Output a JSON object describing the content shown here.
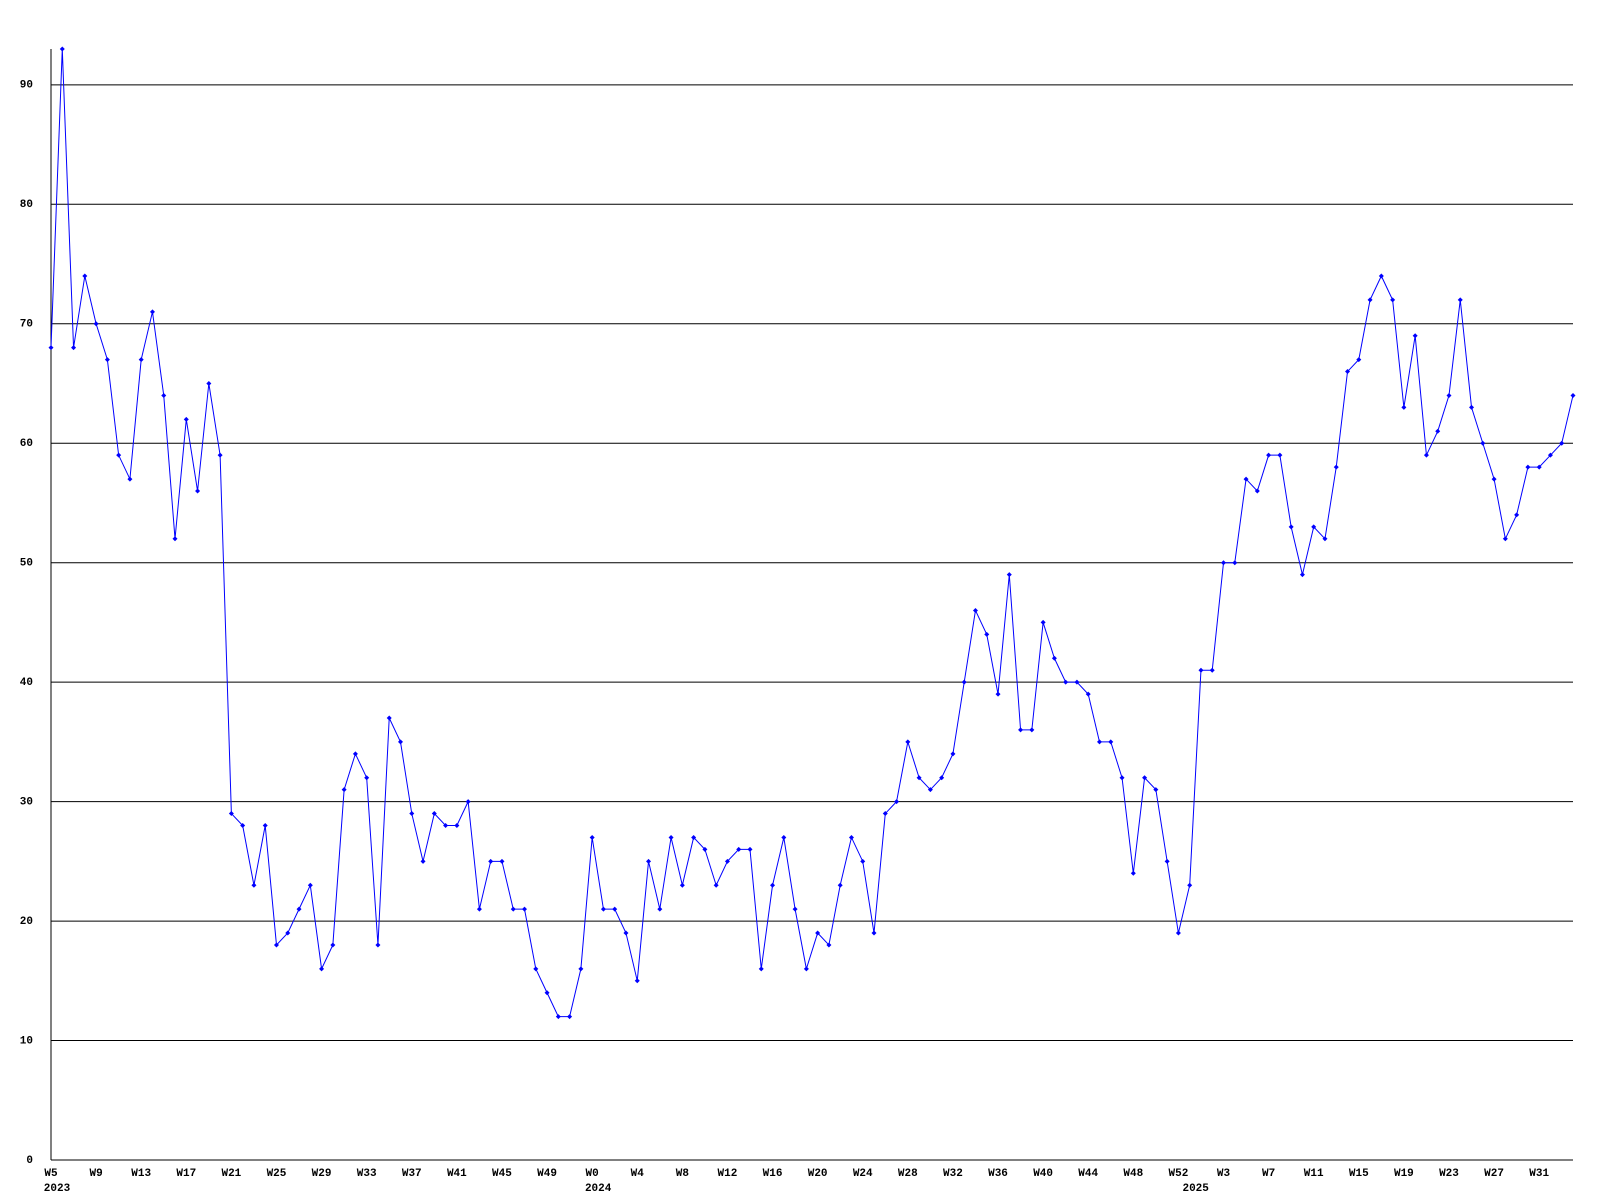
{
  "chart_data": {
    "type": "line",
    "categories": [
      "W5",
      null,
      null,
      null,
      "W9",
      null,
      null,
      null,
      "W13",
      null,
      null,
      null,
      "W17",
      null,
      null,
      null,
      "W21",
      null,
      null,
      null,
      "W25",
      null,
      null,
      null,
      "W29",
      null,
      null,
      null,
      "W33",
      null,
      null,
      null,
      "W37",
      null,
      null,
      null,
      "W41",
      null,
      null,
      null,
      "W45",
      null,
      null,
      null,
      "W49",
      null,
      null,
      null,
      "W0",
      null,
      null,
      null,
      "W4",
      null,
      null,
      null,
      "W8",
      null,
      null,
      null,
      "W12",
      null,
      null,
      null,
      "W16",
      null,
      null,
      null,
      "W20",
      null,
      null,
      null,
      "W24",
      null,
      null,
      null,
      "W28",
      null,
      null,
      null,
      "W32",
      null,
      null,
      null,
      "W36",
      null,
      null,
      null,
      "W40",
      null,
      null,
      null,
      "W44",
      null,
      null,
      null,
      "W48",
      null,
      null,
      null,
      "W52",
      null,
      null,
      null,
      "W3",
      null,
      null,
      null,
      "W7",
      null,
      null,
      null,
      "W11",
      null,
      null,
      null,
      "W15",
      null,
      null,
      null,
      "W19",
      null,
      null,
      null,
      "W23",
      null,
      null,
      null,
      "W27",
      null,
      null,
      null,
      "W31",
      null,
      null,
      null
    ],
    "years": [
      "2023",
      null,
      null,
      null,
      null,
      null,
      null,
      null,
      null,
      null,
      null,
      null,
      null,
      null,
      null,
      null,
      null,
      null,
      null,
      null,
      null,
      null,
      null,
      null,
      null,
      null,
      null,
      null,
      null,
      null,
      null,
      null,
      null,
      null,
      null,
      null,
      null,
      null,
      null,
      null,
      null,
      null,
      null,
      null,
      null,
      null,
      null,
      null,
      "2024",
      null,
      null,
      null,
      null,
      null,
      null,
      null,
      null,
      null,
      null,
      null,
      null,
      null,
      null,
      null,
      null,
      null,
      null,
      null,
      null,
      null,
      null,
      null,
      null,
      null,
      null,
      null,
      null,
      null,
      null,
      null,
      null,
      null,
      null,
      null,
      null,
      null,
      null,
      null,
      null,
      null,
      null,
      null,
      null,
      null,
      null,
      null,
      null,
      null,
      null,
      null,
      null,
      "2025",
      null,
      null,
      null,
      null,
      null,
      null,
      null,
      null,
      null,
      null,
      null,
      null,
      null,
      null,
      null,
      null,
      null,
      null,
      null,
      null,
      null,
      null,
      null,
      null,
      null,
      null,
      null,
      null,
      null,
      null,
      null,
      null,
      null
    ],
    "series": [
      {
        "color": "#0000ff",
        "values": [
          68,
          93,
          68,
          74,
          70,
          67,
          59,
          57,
          67,
          71,
          64,
          52,
          62,
          56,
          65,
          59,
          29,
          28,
          23,
          28,
          18,
          19,
          21,
          23,
          16,
          18,
          31,
          34,
          32,
          18,
          37,
          35,
          29,
          25,
          29,
          28,
          28,
          30,
          21,
          25,
          25,
          21,
          21,
          16,
          14,
          12,
          12,
          16,
          27,
          21,
          21,
          19,
          15,
          25,
          21,
          27,
          23,
          27,
          26,
          23,
          25,
          26,
          26,
          16,
          23,
          27,
          21,
          16,
          19,
          18,
          23,
          27,
          25,
          19,
          29,
          30,
          35,
          32,
          31,
          32,
          34,
          40,
          46,
          44,
          39,
          49,
          36,
          36,
          45,
          42,
          40,
          40,
          39,
          35,
          35,
          32,
          24,
          32,
          31,
          25,
          19,
          23,
          41,
          41,
          50,
          50,
          57,
          56,
          59,
          59,
          53,
          49,
          53,
          52,
          58,
          66,
          67,
          72,
          74,
          72,
          63,
          69,
          59,
          61,
          64,
          72,
          63,
          60,
          57,
          52,
          54,
          58,
          58,
          59,
          60,
          64
        ]
      }
    ],
    "ylim": [
      0,
      93
    ],
    "yticks": [
      0,
      10,
      20,
      30,
      40,
      50,
      60,
      70,
      80,
      90
    ],
    "grid": true
  }
}
